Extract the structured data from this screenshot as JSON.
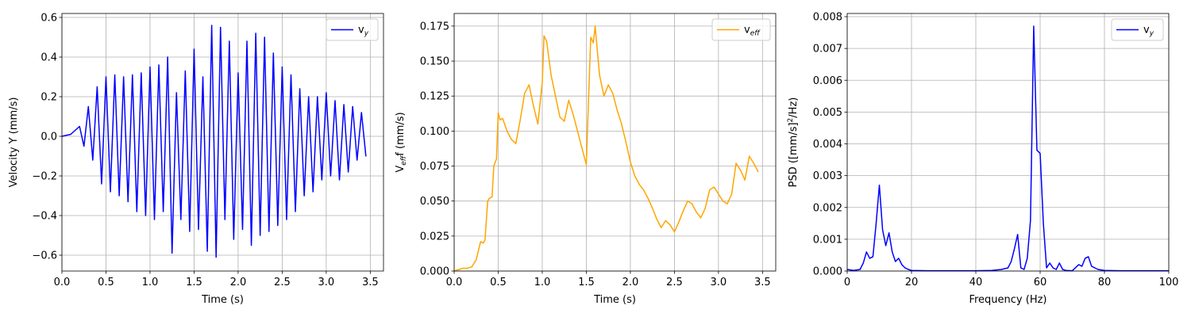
{
  "chart_data": [
    {
      "type": "line",
      "xlabel": "Time (s)",
      "ylabel": "Velocity Y (mm/s)",
      "xlim": [
        0,
        3.65
      ],
      "ylim": [
        -0.68,
        0.62
      ],
      "xticks": [
        0.0,
        0.5,
        1.0,
        1.5,
        2.0,
        2.5,
        3.0,
        3.5
      ],
      "xtick_labels": [
        "0.0",
        "0.5",
        "1.0",
        "1.5",
        "2.0",
        "2.5",
        "3.0",
        "3.5"
      ],
      "yticks": [
        -0.6,
        -0.4,
        -0.2,
        0.0,
        0.2,
        0.4,
        0.6
      ],
      "ytick_labels": [
        "−0.6",
        "−0.4",
        "−0.2",
        "0.0",
        "0.2",
        "0.4",
        "0.6"
      ],
      "grid": true,
      "legend_position": "top-right",
      "color": "#0000ff",
      "series": [
        {
          "name": "v_y",
          "legend_main": "v",
          "legend_sub": "y",
          "x": [
            0.0,
            0.1,
            0.2,
            0.25,
            0.3,
            0.35,
            0.4,
            0.45,
            0.5,
            0.55,
            0.6,
            0.65,
            0.7,
            0.75,
            0.8,
            0.85,
            0.9,
            0.95,
            1.0,
            1.05,
            1.1,
            1.15,
            1.2,
            1.25,
            1.3,
            1.35,
            1.4,
            1.45,
            1.5,
            1.55,
            1.6,
            1.65,
            1.7,
            1.75,
            1.8,
            1.85,
            1.9,
            1.95,
            2.0,
            2.05,
            2.1,
            2.15,
            2.2,
            2.25,
            2.3,
            2.35,
            2.4,
            2.45,
            2.5,
            2.55,
            2.6,
            2.65,
            2.7,
            2.75,
            2.8,
            2.85,
            2.9,
            2.95,
            3.0,
            3.05,
            3.1,
            3.15,
            3.2,
            3.25,
            3.3,
            3.35,
            3.4,
            3.45
          ],
          "y": [
            0.0,
            0.01,
            0.05,
            -0.05,
            0.15,
            -0.12,
            0.25,
            -0.24,
            0.3,
            -0.28,
            0.31,
            -0.3,
            0.3,
            -0.33,
            0.31,
            -0.38,
            0.32,
            -0.4,
            0.35,
            -0.42,
            0.36,
            -0.38,
            0.4,
            -0.59,
            0.22,
            -0.42,
            0.33,
            -0.48,
            0.44,
            -0.47,
            0.3,
            -0.58,
            0.56,
            -0.61,
            0.55,
            -0.42,
            0.48,
            -0.52,
            0.32,
            -0.47,
            0.48,
            -0.55,
            0.52,
            -0.5,
            0.5,
            -0.48,
            0.42,
            -0.45,
            0.35,
            -0.42,
            0.31,
            -0.38,
            0.24,
            -0.3,
            0.2,
            -0.28,
            0.2,
            -0.22,
            0.22,
            -0.2,
            0.18,
            -0.22,
            0.16,
            -0.18,
            0.15,
            -0.12,
            0.12,
            -0.1
          ]
        }
      ]
    },
    {
      "type": "line",
      "xlabel": "Time (s)",
      "ylabel_main": "V",
      "ylabel_sub": "eff",
      "ylabel_rest": "f (mm/s)",
      "xlim": [
        0,
        3.65
      ],
      "ylim": [
        0,
        0.184
      ],
      "xticks": [
        0.0,
        0.5,
        1.0,
        1.5,
        2.0,
        2.5,
        3.0,
        3.5
      ],
      "xtick_labels": [
        "0.0",
        "0.5",
        "1.0",
        "1.5",
        "2.0",
        "2.5",
        "3.0",
        "3.5"
      ],
      "yticks": [
        0.0,
        0.025,
        0.05,
        0.075,
        0.1,
        0.125,
        0.15,
        0.175
      ],
      "ytick_labels": [
        "0.000",
        "0.025",
        "0.050",
        "0.075",
        "0.100",
        "0.125",
        "0.150",
        "0.175"
      ],
      "grid": true,
      "legend_position": "top-right",
      "color": "#ffa500",
      "series": [
        {
          "name": "v_eff",
          "legend_main": "v",
          "legend_sub": "eff",
          "x": [
            0.0,
            0.05,
            0.1,
            0.15,
            0.2,
            0.25,
            0.3,
            0.33,
            0.35,
            0.38,
            0.4,
            0.43,
            0.45,
            0.48,
            0.5,
            0.52,
            0.55,
            0.6,
            0.65,
            0.7,
            0.75,
            0.8,
            0.85,
            0.9,
            0.95,
            1.0,
            1.02,
            1.05,
            1.1,
            1.15,
            1.2,
            1.25,
            1.3,
            1.35,
            1.4,
            1.45,
            1.5,
            1.52,
            1.55,
            1.58,
            1.6,
            1.65,
            1.7,
            1.75,
            1.8,
            1.85,
            1.9,
            1.95,
            2.0,
            2.05,
            2.1,
            2.15,
            2.2,
            2.25,
            2.3,
            2.35,
            2.4,
            2.45,
            2.5,
            2.55,
            2.6,
            2.65,
            2.7,
            2.75,
            2.8,
            2.85,
            2.9,
            2.95,
            3.0,
            3.05,
            3.1,
            3.15,
            3.2,
            3.25,
            3.3,
            3.35,
            3.4,
            3.45
          ],
          "y": [
            0.0,
            0.001,
            0.002,
            0.002,
            0.003,
            0.008,
            0.021,
            0.02,
            0.022,
            0.05,
            0.052,
            0.053,
            0.075,
            0.08,
            0.113,
            0.108,
            0.109,
            0.1,
            0.094,
            0.091,
            0.108,
            0.127,
            0.133,
            0.118,
            0.105,
            0.135,
            0.168,
            0.164,
            0.14,
            0.125,
            0.11,
            0.107,
            0.122,
            0.112,
            0.1,
            0.088,
            0.076,
            0.113,
            0.167,
            0.163,
            0.175,
            0.14,
            0.125,
            0.133,
            0.127,
            0.115,
            0.105,
            0.092,
            0.078,
            0.068,
            0.062,
            0.058,
            0.052,
            0.045,
            0.037,
            0.031,
            0.036,
            0.033,
            0.028,
            0.035,
            0.043,
            0.05,
            0.048,
            0.042,
            0.038,
            0.045,
            0.058,
            0.06,
            0.055,
            0.05,
            0.048,
            0.055,
            0.077,
            0.072,
            0.065,
            0.082,
            0.077,
            0.071
          ]
        }
      ]
    },
    {
      "type": "line",
      "xlabel": "Frequency (Hz)",
      "ylabel_pre": "PSD ([mm/s]",
      "ylabel_sup": "2",
      "ylabel_post": "/Hz)",
      "xlim": [
        0,
        100
      ],
      "ylim": [
        0,
        0.0081
      ],
      "xticks": [
        0,
        20,
        40,
        60,
        80,
        100
      ],
      "xtick_labels": [
        "0",
        "20",
        "40",
        "60",
        "80",
        "100"
      ],
      "yticks": [
        0.0,
        0.001,
        0.002,
        0.003,
        0.004,
        0.005,
        0.006,
        0.007,
        0.008
      ],
      "ytick_labels": [
        "0.000",
        "0.001",
        "0.002",
        "0.003",
        "0.004",
        "0.005",
        "0.006",
        "0.007",
        "0.008"
      ],
      "grid": true,
      "legend_position": "top-right",
      "color": "#0000ff",
      "series": [
        {
          "name": "v_y",
          "legend_main": "v",
          "legend_sub": "y",
          "x": [
            0,
            2,
            4,
            5,
            6,
            7,
            8,
            9,
            10,
            11,
            12,
            13,
            14,
            15,
            16,
            17,
            18,
            19,
            20,
            25,
            30,
            40,
            45,
            48,
            50,
            51,
            52,
            53,
            54,
            55,
            56,
            57,
            58,
            59,
            60,
            61,
            62,
            63,
            64,
            65,
            66,
            67,
            68,
            70,
            72,
            73,
            74,
            75,
            76,
            77,
            78,
            80,
            85,
            90,
            100
          ],
          "y": [
            5e-05,
            2e-05,
            5e-05,
            0.00025,
            0.0006,
            0.0004,
            0.00045,
            0.0015,
            0.0027,
            0.0013,
            0.0008,
            0.0012,
            0.0006,
            0.0003,
            0.0004,
            0.0002,
            0.0001,
            5e-05,
            2e-05,
            1e-05,
            1e-05,
            1e-05,
            2e-05,
            5e-05,
            0.0001,
            0.0003,
            0.0007,
            0.00115,
            0.0001,
            5e-05,
            0.0004,
            0.0016,
            0.0077,
            0.0038,
            0.0037,
            0.0015,
            0.0001,
            0.00025,
            0.0001,
            5e-05,
            0.00025,
            5e-05,
            2e-05,
            1e-05,
            0.0002,
            0.00015,
            0.0004,
            0.00045,
            0.00015,
            0.0001,
            5e-05,
            2e-05,
            1e-05,
            1e-05,
            1e-05
          ]
        }
      ]
    }
  ]
}
